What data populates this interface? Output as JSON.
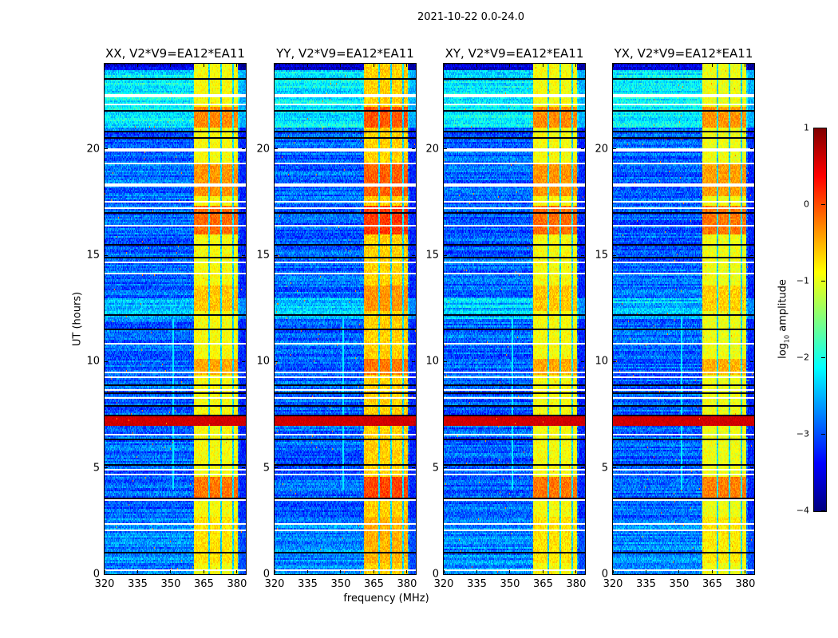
{
  "figure": {
    "suptitle": "2021-10-22 0.0-24.0"
  },
  "chart_data": {
    "type": "heatmap",
    "title": "2021-10-22 0.0-24.0",
    "panels": [
      {
        "id": "xx",
        "title": "XX, V2*V9=EA12*EA11",
        "rfi_offset": 0.0
      },
      {
        "id": "yy",
        "title": "YY, V2*V9=EA12*EA11",
        "rfi_offset": 0.25
      },
      {
        "id": "xy",
        "title": "XY, V2*V9=EA12*EA11",
        "rfi_offset": 0.0
      },
      {
        "id": "yx",
        "title": "YX, V2*V9=EA12*EA11",
        "rfi_offset": -0.05
      }
    ],
    "xlabel": "frequency (MHz)",
    "ylabel": "UT (hours)",
    "xlim": [
      320,
      384
    ],
    "ylim": [
      0,
      24
    ],
    "xticks": [
      320,
      335,
      350,
      365,
      380
    ],
    "yticks": [
      0,
      5,
      10,
      15,
      20
    ],
    "colorbar": {
      "label_main": "log",
      "label_sub": "10",
      "label_rest": " amplitude",
      "range": [
        -4,
        1
      ],
      "ticks": [
        1,
        0,
        -1,
        -2,
        -3,
        -4
      ],
      "colormap": "jet"
    },
    "features": {
      "background_segments_ut": [
        [
          0,
          2.6,
          -2.7
        ],
        [
          2.6,
          7.0,
          -2.9
        ],
        [
          7.0,
          7.45,
          0.6
        ],
        [
          7.45,
          12.0,
          -2.9
        ],
        [
          12.0,
          13.0,
          -2.4
        ],
        [
          13.0,
          21.0,
          -2.9
        ],
        [
          21.0,
          23.7,
          -2.2
        ],
        [
          23.7,
          24,
          -3.6
        ]
      ],
      "rfi_band_mhz": [
        360.5,
        380.5
      ],
      "rfi_gaps_mhz": [
        367.3,
        372.8,
        378.2
      ],
      "rfi_level": -0.9,
      "rfi_hot_intervals_ut": [
        [
          3.6,
          4.6,
          -0.2
        ],
        [
          16.0,
          17.3,
          -0.15
        ],
        [
          17.8,
          19.3,
          -0.35
        ],
        [
          21.0,
          22.0,
          -0.3
        ],
        [
          9.4,
          10.1,
          -0.45
        ],
        [
          12.4,
          13.6,
          -0.6
        ],
        [
          0.5,
          2.7,
          -0.75
        ]
      ],
      "flagged_rows_ut": [
        0.2,
        2.05,
        2.35,
        3.5,
        4.7,
        4.9,
        6.55,
        8.3,
        8.65,
        9.25,
        9.5,
        10.85,
        14.15,
        14.65,
        16.4,
        17.2,
        17.5,
        18.3,
        19.3,
        19.95,
        22.1,
        22.5
      ],
      "dark_rows_ut": [
        0.3,
        1.0,
        3.55,
        5.15,
        6.0,
        6.35,
        7.45,
        7.9,
        8.5,
        8.9,
        11.5,
        12.2,
        12.6,
        14.9,
        15.3,
        15.5,
        17.0,
        20.5,
        20.8,
        21.8,
        22.8,
        23.3,
        23.7
      ],
      "narrow_lines_mhz": [
        351.0
      ]
    }
  }
}
